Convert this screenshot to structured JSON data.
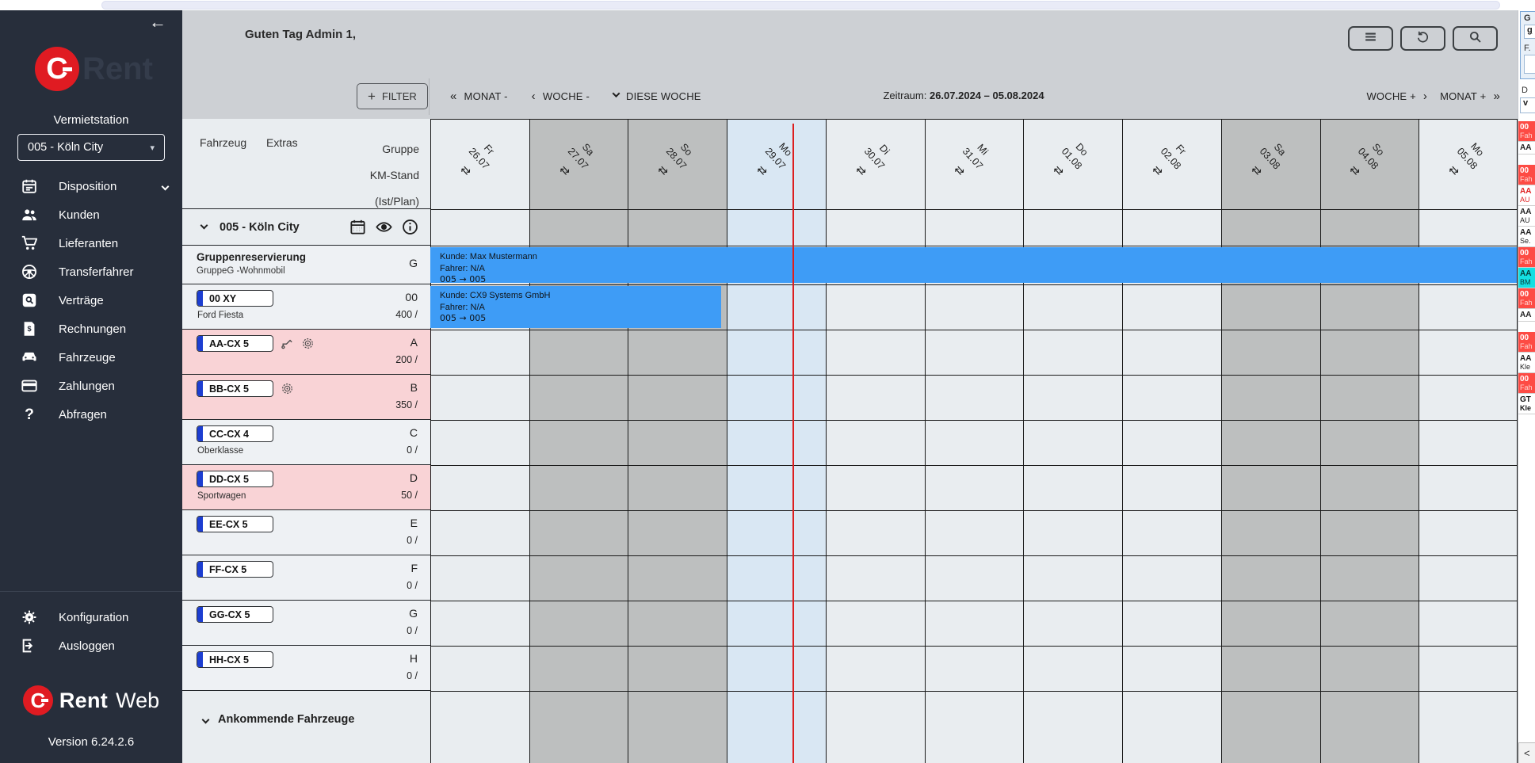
{
  "colors": {
    "sidebar_bg": "#272e3b",
    "brand_red": "#e01b22",
    "header_bg": "#cdd0d4",
    "accent_blue_bar": "#3e9cf6",
    "pink_row": "#f9d3d6",
    "group_row_gray": "#c8cacd",
    "weekend_col": "#bdbfbf",
    "today_col": "#d9e7f3",
    "weekday_col": "#e9edf0",
    "red_timeline": "#dd1f1f",
    "panel_red": "#fd4b44",
    "panel_cyan": "#14dfe2",
    "plate_band_blue": "#1d3ed1"
  },
  "sidebar": {
    "logo_ghost_text": "Rent",
    "station_label": "Vermietstation",
    "station_value": "005 - Köln City",
    "items": [
      {
        "id": "disposition",
        "label": "Disposition",
        "icon": "calendar-icon",
        "expandable": true
      },
      {
        "id": "kunden",
        "label": "Kunden",
        "icon": "people-icon"
      },
      {
        "id": "lieferanten",
        "label": "Lieferanten",
        "icon": "cart-icon"
      },
      {
        "id": "transferfahrer",
        "label": "Transferfahrer",
        "icon": "steering-wheel-icon"
      },
      {
        "id": "vertraege",
        "label": "Verträge",
        "icon": "search-doc-icon"
      },
      {
        "id": "rechnungen",
        "label": "Rechnungen",
        "icon": "invoice-icon"
      },
      {
        "id": "fahrzeuge",
        "label": "Fahrzeuge",
        "icon": "car-icon"
      },
      {
        "id": "zahlungen",
        "label": "Zahlungen",
        "icon": "card-icon"
      },
      {
        "id": "abfragen",
        "label": "Abfragen",
        "icon": "question-icon"
      }
    ],
    "footer_items": [
      {
        "id": "konfiguration",
        "label": "Konfiguration",
        "icon": "gear-icon"
      },
      {
        "id": "ausloggen",
        "label": "Ausloggen",
        "icon": "logout-icon"
      }
    ],
    "brand_bottom_rent": "Rent",
    "brand_bottom_web": "Web",
    "version": "Version 6.24.2.6"
  },
  "header": {
    "greeting": "Guten Tag Admin 1,",
    "buttons": [
      {
        "id": "menu",
        "icon": "hamburger-icon"
      },
      {
        "id": "refresh",
        "icon": "refresh-icon"
      },
      {
        "id": "search",
        "icon": "search-icon"
      }
    ]
  },
  "toolbar": {
    "filter_label": "FILTER",
    "filter_plus": "+",
    "nav_left": [
      {
        "id": "monat-minus",
        "arrow": "«",
        "label": "MONAT -"
      },
      {
        "id": "woche-minus",
        "arrow": "‹",
        "label": "WOCHE -"
      },
      {
        "id": "diese-woche",
        "arrow": "chevron-down",
        "label": "DIESE WOCHE"
      }
    ],
    "zeitraum_label": "Zeitraum:",
    "zeitraum_value": "26.07.2024 – 05.08.2024",
    "nav_right": [
      {
        "id": "woche-plus",
        "label": "WOCHE +",
        "arrow": "›"
      },
      {
        "id": "monat-plus",
        "label": "MONAT +",
        "arrow": "»"
      }
    ]
  },
  "schedule": {
    "left_header": {
      "col1": "Fahrzeug",
      "col2": "Extras",
      "right_lines": [
        "Gruppe",
        "KM-Stand",
        "(Ist/Plan)"
      ]
    },
    "station_row": {
      "label": "005 - Köln City",
      "icons": [
        "calendar-small-icon",
        "eye-icon",
        "info-icon"
      ]
    },
    "days": [
      {
        "day": "Fr",
        "date": "26.07",
        "kind": "weekday"
      },
      {
        "day": "Sa",
        "date": "27.07",
        "kind": "weekend"
      },
      {
        "day": "So",
        "date": "28.07",
        "kind": "weekend"
      },
      {
        "day": "Mo",
        "date": "29.07",
        "kind": "today"
      },
      {
        "day": "Di",
        "date": "30.07",
        "kind": "weekday"
      },
      {
        "day": "Mi",
        "date": "31.07",
        "kind": "weekday"
      },
      {
        "day": "Do",
        "date": "01.08",
        "kind": "weekday"
      },
      {
        "day": "Fr",
        "date": "02.08",
        "kind": "weekday"
      },
      {
        "day": "Sa",
        "date": "03.08",
        "kind": "weekend"
      },
      {
        "day": "So",
        "date": "04.08",
        "kind": "weekend"
      },
      {
        "day": "Mo",
        "date": "05.08",
        "kind": "weekday"
      }
    ],
    "rows": [
      {
        "id": "gruppenreservierung",
        "type": "group",
        "title": "Gruppenreservierung",
        "subtitle": "GruppeG -Wohnmobil",
        "group": "G"
      },
      {
        "id": "00xy",
        "type": "vehicle",
        "plate": "00 XY",
        "name": "Ford Fiesta",
        "group": "00",
        "km": "400 /",
        "highlight": false,
        "extras": []
      },
      {
        "id": "aa-cx5",
        "type": "vehicle",
        "plate": "AA-CX 5",
        "name": "",
        "group": "A",
        "km": "200 /",
        "highlight": true,
        "extras": [
          "towbar-icon",
          "tire-icon"
        ]
      },
      {
        "id": "bb-cx5",
        "type": "vehicle",
        "plate": "BB-CX 5",
        "name": "",
        "group": "B",
        "km": "350 /",
        "highlight": true,
        "extras": [
          "tire-icon"
        ]
      },
      {
        "id": "cc-cx4",
        "type": "vehicle",
        "plate": "CC-CX 4",
        "name": "Oberklasse",
        "group": "C",
        "km": "0 /",
        "highlight": false,
        "extras": []
      },
      {
        "id": "dd-cx5",
        "type": "vehicle",
        "plate": "DD-CX 5",
        "name": "Sportwagen",
        "group": "D",
        "km": "50 /",
        "highlight": true,
        "extras": []
      },
      {
        "id": "ee-cx5",
        "type": "vehicle",
        "plate": "EE-CX 5",
        "name": "",
        "group": "E",
        "km": "0 /",
        "highlight": false,
        "extras": []
      },
      {
        "id": "ff-cx5",
        "type": "vehicle",
        "plate": "FF-CX 5",
        "name": "",
        "group": "F",
        "km": "0 /",
        "highlight": false,
        "extras": []
      },
      {
        "id": "gg-cx5",
        "type": "vehicle",
        "plate": "GG-CX 5",
        "name": "",
        "group": "G",
        "km": "0 /",
        "highlight": false,
        "extras": []
      },
      {
        "id": "hh-cx5",
        "type": "vehicle",
        "plate": "HH-CX 5",
        "name": "",
        "group": "H",
        "km": "0 /",
        "highlight": false,
        "extras": []
      }
    ],
    "reservations": [
      {
        "id": "res-max-mustermann",
        "customer": "Kunde: Max Mustermann",
        "driver": "Fahrer: N/A",
        "route": "005  →  005",
        "body_row": 1,
        "start_col": 0,
        "span": 11,
        "handle": false
      },
      {
        "id": "res-cx9-systems",
        "customer": "Kunde: CX9 Systems GmbH",
        "driver": "Fahrer: N/A",
        "route": "005  →  005",
        "body_row": 2,
        "start_col": 0,
        "span": 3,
        "handle": true
      }
    ],
    "footer_label": "Ankommende Fahrzeuge"
  },
  "right_panel": {
    "form": {
      "title_fragment": "G",
      "field1_value": "g",
      "label2_fragment": "F.",
      "field2_value": "",
      "label3_fragment": "D",
      "select_fragment": "v"
    },
    "rows": [
      {
        "style": "red",
        "l1": "00",
        "l2": "Fah"
      },
      {
        "style": "white",
        "l1": "AA",
        "l2": ""
      },
      {
        "style": "gap"
      },
      {
        "style": "red",
        "l1": "00",
        "l2": "Fah"
      },
      {
        "style": "redtext",
        "l1": "AA",
        "l2": "AU"
      },
      {
        "style": "white",
        "l1": "AA",
        "l2": "AU"
      },
      {
        "style": "white",
        "l1": "AA",
        "l2": "Se."
      },
      {
        "style": "red",
        "l1": "00",
        "l2": "Fah"
      },
      {
        "style": "cyan",
        "l1": "AA",
        "l2": "BM"
      },
      {
        "style": "red",
        "l1": "00",
        "l2": "Fah"
      },
      {
        "style": "white",
        "l1": "AA",
        "l2": ""
      },
      {
        "style": "gap"
      },
      {
        "style": "red",
        "l1": "00",
        "l2": "Fah"
      },
      {
        "style": "white",
        "l1": "AA",
        "l2": "Kle"
      },
      {
        "style": "red",
        "l1": "00",
        "l2": "Fah"
      },
      {
        "style": "white rp-bold",
        "l1": "GT",
        "l2": "Kle"
      }
    ],
    "collapse_fragment": "<"
  }
}
